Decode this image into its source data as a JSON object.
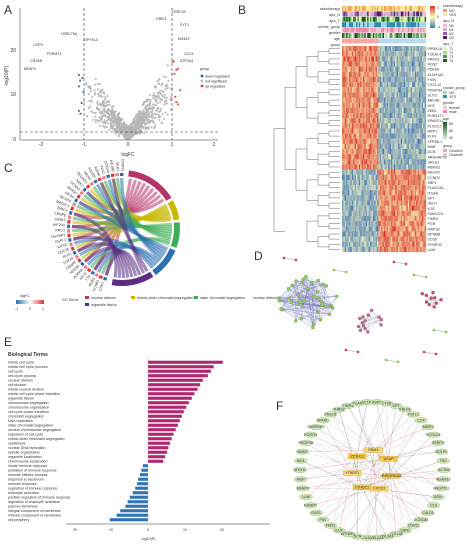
{
  "panels": {
    "A": "A",
    "B": "B",
    "C": "C",
    "D": "D",
    "E": "E",
    "F": "F"
  },
  "volcano": {
    "xlabel": "logFC",
    "ylabel": "-log10(P)",
    "xticks": [
      "-2",
      "-1",
      "0",
      "1",
      "2"
    ],
    "yticks": [
      "0",
      "10",
      "20"
    ],
    "legend_title": "group",
    "legend_items": [
      {
        "label": "down-regulated",
        "color": "#2b5a9e"
      },
      {
        "label": "not-significant",
        "color": "#b5b5b5"
      },
      {
        "label": "up-regulated",
        "color": "#d6383a"
      }
    ],
    "gene_labels_left": [
      "LRRC75A",
      "DPYSL3",
      "COP3",
      "FERMT2",
      "CRYAB",
      "MFAP4"
    ],
    "gene_labels_right": [
      "LRRC32",
      "GRIK1",
      "SYT1",
      "MS4A7",
      "CCL5",
      "ATP2A3"
    ]
  },
  "heatmap": {
    "legend_tracks": [
      "radiotherapy",
      "ajcc_N",
      "ajcc_T",
      "smoke_group",
      "gender",
      "age",
      "group"
    ],
    "track_labels": [
      "radiotherapy",
      "ajcc_N",
      "ajcc_T",
      "smoke_group",
      "gender",
      "age",
      "group"
    ],
    "legend": {
      "radiotherapy": [
        {
          "label": "NO",
          "color": "#f2a65a"
        },
        {
          "label": "YES",
          "color": "#ffe6a0"
        }
      ],
      "ajcc_N": [
        {
          "label": "N0",
          "color": "#f7b6d2"
        },
        {
          "label": "N1",
          "color": "#c5b0d5"
        },
        {
          "label": "N2",
          "color": "#9b59b6"
        },
        {
          "label": "N3",
          "color": "#4a235a"
        }
      ],
      "ajcc_T": [
        {
          "label": "T1",
          "color": "#e5f5a0"
        },
        {
          "label": "T2",
          "color": "#a3d977"
        },
        {
          "label": "T3",
          "color": "#3a9d4f"
        },
        {
          "label": "T4",
          "color": "#1a5e2a"
        }
      ],
      "smoke_group": [
        {
          "label": "NO",
          "color": "#9fd6e0"
        },
        {
          "label": "YES",
          "color": "#2e8aa8"
        }
      ],
      "gender": [
        {
          "label": "female",
          "color": "#f7c2d4"
        },
        {
          "label": "male",
          "color": "#e989aa"
        }
      ],
      "age_ticks": [
        "80",
        "60",
        "40"
      ],
      "group": [
        {
          "label": "ClusterA",
          "color": "#f3a7a0"
        },
        {
          "label": "ClusterB",
          "color": "#b7d8f0"
        }
      ],
      "scale": [
        "1",
        "0",
        "-1"
      ]
    },
    "genes": [
      "PIP5K1A",
      "TCEAL4",
      "PRKG1",
      "RGS2",
      "PDE5A",
      "ALDH1A2",
      "FIGN",
      "CXCL12",
      "PDGFRA",
      "SLIT2",
      "ABCA8",
      "HGF",
      "ZEB1",
      "RUNX1T1",
      "SPARCL1",
      "PLXDC2",
      "NRP1",
      "KLF9",
      "ZFP36L1",
      "MME",
      "DCN",
      "ARHGAP28",
      "SASH1",
      "RBMS3",
      "MEOX2",
      "CCND2",
      "EBF1",
      "PLA2G4A",
      "ITGA8",
      "DPT",
      "SELP",
      "IL33",
      "FAM107A",
      "TIMP3",
      "PGR",
      "MAP1B",
      "GPM6B",
      "CD36",
      "SYNPO2",
      "LUM"
    ]
  },
  "chord": {
    "legend_title": "logFC",
    "legend_scale": [
      "-1",
      "0",
      "1"
    ],
    "terms": [
      {
        "label": "nuclear division",
        "color": "#b5356b"
      },
      {
        "label": "organelle fission",
        "color": "#5a2d82"
      },
      {
        "label": "mitotic sister chromatid segregation",
        "color": "#c9b800"
      },
      {
        "label": "sister chromatid segregation",
        "color": "#3fae5a"
      },
      {
        "label": "nuclear division",
        "color": "#2c6fb3"
      }
    ],
    "header": "GO Terms",
    "genes": [
      "CDK1",
      "CCNB1",
      "BUB1",
      "TTK",
      "KIF11",
      "AURKA",
      "NDC80",
      "CENPF",
      "TOP2A",
      "PLK1",
      "CDC20",
      "KIF2C",
      "ESPL1",
      "NUSAP1",
      "PRC1",
      "KIF20A",
      "ZWINT",
      "CENPE",
      "BIRC5",
      "MAD2L1",
      "NCAPG",
      "KIF4A",
      "SPAG5",
      "CCNA2",
      "NEK2",
      "DLGAP5",
      "MKI67",
      "HJURP",
      "ASPM",
      "TPX2",
      "CDCA8",
      "KIF18B",
      "SKA1",
      "CDKN3"
    ]
  },
  "go_bar": {
    "header": "Biological Terms",
    "xlabel": "-log10(P)",
    "xticks": [
      "20",
      "10",
      "0",
      "10",
      "20"
    ],
    "up_color": "#b02670",
    "down_color": "#2f74b5",
    "terms_up": [
      {
        "label": "mitotic cell cycle",
        "value": 20.5
      },
      {
        "label": "mitotic cell cycle process",
        "value": 18.0
      },
      {
        "label": "cell cycle",
        "value": 17.2
      },
      {
        "label": "cell cycle process",
        "value": 16.4
      },
      {
        "label": "nuclear division",
        "value": 15.0
      },
      {
        "label": "cell division",
        "value": 14.3
      },
      {
        "label": "mitotic nuclear division",
        "value": 13.6
      },
      {
        "label": "mitotic cell cycle phase transition",
        "value": 12.7
      },
      {
        "label": "organelle fission",
        "value": 12.0
      },
      {
        "label": "chromosome segregation",
        "value": 11.2
      },
      {
        "label": "chromosome organization",
        "value": 10.5
      },
      {
        "label": "cell cycle phase transition",
        "value": 9.8
      },
      {
        "label": "chromatid segregation",
        "value": 9.3
      },
      {
        "label": "DNA replication",
        "value": 8.7
      },
      {
        "label": "sister chromatid segregation",
        "value": 8.2
      },
      {
        "label": "nuclear chromosome segregation",
        "value": 7.6
      },
      {
        "label": "regulation of cell cycle",
        "value": 7.0
      },
      {
        "label": "mitotic sister chromatid segregation",
        "value": 6.5
      },
      {
        "label": "cytokinesis",
        "value": 6.0
      },
      {
        "label": "nuclear DNA replication",
        "value": 5.6
      },
      {
        "label": "spindle organization",
        "value": 5.2
      },
      {
        "label": "organelle localization",
        "value": 4.7
      },
      {
        "label": "chromosome localization",
        "value": 4.2
      }
    ],
    "terms_down": [
      {
        "label": "innate immune response",
        "value": 1.4
      },
      {
        "label": "activation of immune response",
        "value": 1.8
      },
      {
        "label": "immune effector process",
        "value": 2.2
      },
      {
        "label": "response to bacterium",
        "value": 2.7
      },
      {
        "label": "immune response",
        "value": 3.0
      },
      {
        "label": "regulation of immune response",
        "value": 3.5
      },
      {
        "label": "leukocyte activation",
        "value": 4.2
      },
      {
        "label": "positive regulation of immune response",
        "value": 5.0
      },
      {
        "label": "regulation of leukocyte activation",
        "value": 5.6
      },
      {
        "label": "plasma membrane",
        "value": 6.2
      },
      {
        "label": "integral component of membrane",
        "value": 7.6
      },
      {
        "label": "intrinsic component of membrane",
        "value": 8.6
      },
      {
        "label": "cell periphery",
        "value": 10.5
      }
    ]
  },
  "network_f": {
    "center_nodes": [
      "HNRNPA2B1",
      "EIF2S3",
      "YTHDC1",
      "YTHDF1",
      "ZC3H13",
      "RBMX",
      "WTAP"
    ],
    "outer_nodes": [
      "ACTN1",
      "ADAM12",
      "ANGPTL1",
      "BGN",
      "C1S",
      "CALD1",
      "CCDC80",
      "CDH11",
      "CNN1",
      "COL1A2",
      "COL3A1",
      "COL5A1",
      "COL6A3",
      "DCN",
      "EFEMP1",
      "ELN",
      "FBN1",
      "FN1",
      "GAS1",
      "IGFBP7",
      "LUM",
      "MFAP4",
      "MGP",
      "MYH11",
      "NID1",
      "NNMT",
      "PDGFRB",
      "POSTN",
      "SERPINF1",
      "SPARC",
      "TAGLN",
      "THBS2",
      "TIMP3",
      "VCAN",
      "ACTA2",
      "ASPN",
      "CTSK",
      "DPT",
      "FBLN1",
      "FSTL1",
      "LOX",
      "MMP2",
      "PCOLCE",
      "SFRP2",
      "SULF1",
      "TNC"
    ]
  }
}
